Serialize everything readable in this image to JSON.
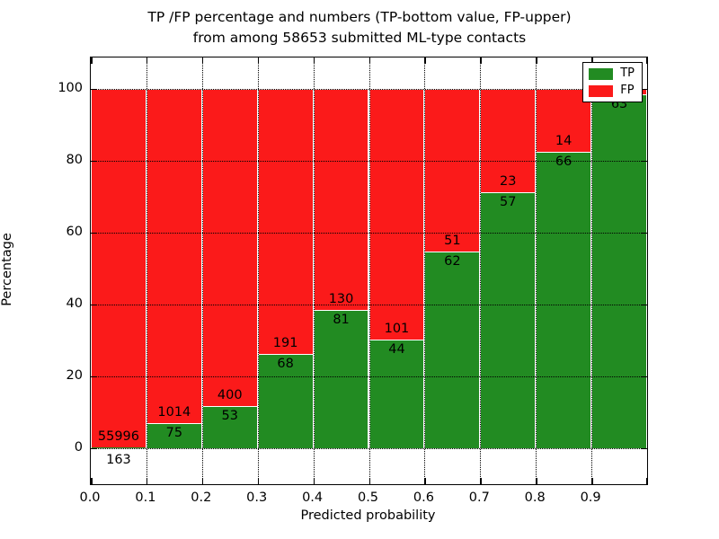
{
  "title": {
    "line1": "TP /FP percentage and numbers (TP-bottom value, FP-upper)",
    "line2": "from among 58653 submitted ML-type contacts"
  },
  "chart_data": {
    "type": "bar",
    "stacked": true,
    "title": "TP /FP percentage and numbers (TP-bottom value, FP-upper) from among 58653 submitted ML-type contacts",
    "total_contacts": 58653,
    "xlabel": "Predicted probability",
    "ylabel": "Percentage",
    "xlim": [
      0.0,
      1.0
    ],
    "ylim": [
      -10,
      108.75
    ],
    "y_tick_values": [
      0,
      20,
      40,
      60,
      80,
      100
    ],
    "y_tick_labels": [
      "0",
      "20",
      "40",
      "60",
      "80",
      "100"
    ],
    "x_tick_labels": [
      "0.0",
      "0.1",
      "0.2",
      "0.3",
      "0.4",
      "0.5",
      "0.6",
      "0.7",
      "0.8",
      "0.9"
    ],
    "grid": "dotted",
    "legend": {
      "position": "upper right",
      "entries": [
        {
          "label": "TP",
          "color": "#228b22"
        },
        {
          "label": "FP",
          "color": "#fb1a1a"
        }
      ]
    },
    "colors": {
      "tp": "#228b22",
      "fp": "#fb1a1a",
      "bar_edge": "#ffffff"
    },
    "bins": [
      {
        "range": [
          0.0,
          0.1
        ],
        "tp": 163,
        "fp": 55996,
        "tp_pct": 0.29,
        "tp_label": "163",
        "fp_label": "55996",
        "tp_label_below_axis": true
      },
      {
        "range": [
          0.1,
          0.2
        ],
        "tp": 75,
        "fp": 1014,
        "tp_pct": 6.89,
        "tp_label": "75",
        "fp_label": "1014"
      },
      {
        "range": [
          0.2,
          0.3
        ],
        "tp": 53,
        "fp": 400,
        "tp_pct": 11.7,
        "tp_label": "53",
        "fp_label": "400"
      },
      {
        "range": [
          0.3,
          0.4
        ],
        "tp": 68,
        "fp": 191,
        "tp_pct": 26.25,
        "tp_label": "68",
        "fp_label": "191"
      },
      {
        "range": [
          0.4,
          0.5
        ],
        "tp": 81,
        "fp": 130,
        "tp_pct": 38.39,
        "tp_label": "81",
        "fp_label": "130"
      },
      {
        "range": [
          0.5,
          0.6
        ],
        "tp": 44,
        "fp": 101,
        "tp_pct": 30.34,
        "tp_label": "44",
        "fp_label": "101"
      },
      {
        "range": [
          0.6,
          0.7
        ],
        "tp": 62,
        "fp": 51,
        "tp_pct": 54.87,
        "tp_label": "62",
        "fp_label": "51"
      },
      {
        "range": [
          0.7,
          0.8
        ],
        "tp": 57,
        "fp": 23,
        "tp_pct": 71.25,
        "tp_label": "57",
        "fp_label": "23"
      },
      {
        "range": [
          0.8,
          0.9
        ],
        "tp": 66,
        "fp": 14,
        "tp_pct": 82.5,
        "tp_label": "66",
        "fp_label": "14"
      },
      {
        "range": [
          0.9,
          1.0
        ],
        "tp": 63,
        "fp": null,
        "tp_pct": 98.45,
        "tp_label": "63",
        "fp_label": ""
      }
    ]
  }
}
